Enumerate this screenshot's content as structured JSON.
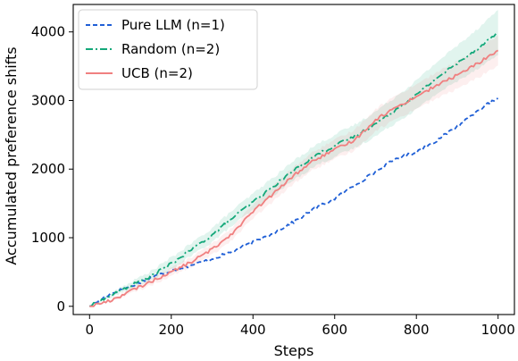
{
  "chart_data": {
    "type": "line",
    "title": "",
    "xlabel": "Steps",
    "ylabel": "Accumulated preference shifts",
    "xlim": [
      -40,
      1040
    ],
    "ylim": [
      -120,
      4400
    ],
    "xticks": [
      0,
      200,
      400,
      600,
      800,
      1000
    ],
    "yticks": [
      0,
      1000,
      2000,
      3000,
      4000
    ],
    "grid": false,
    "legend_position": "top-left",
    "series": [
      {
        "name": "Pure LLM (n=1)",
        "color": "#1f5fd6",
        "dash": "dashed",
        "band": false,
        "x": [
          0,
          50,
          100,
          150,
          200,
          250,
          300,
          350,
          400,
          450,
          500,
          550,
          600,
          650,
          700,
          750,
          800,
          850,
          900,
          950,
          1000
        ],
        "values": [
          0,
          180,
          290,
          420,
          520,
          600,
          690,
          800,
          930,
          1070,
          1230,
          1420,
          1570,
          1770,
          1960,
          2150,
          2250,
          2420,
          2620,
          2860,
          3030
        ]
      },
      {
        "name": "Random (n=2)",
        "color": "#14a87a",
        "dash": "dashdot",
        "band": true,
        "x": [
          0,
          50,
          100,
          150,
          200,
          250,
          300,
          350,
          400,
          450,
          500,
          550,
          600,
          650,
          700,
          750,
          800,
          850,
          900,
          950,
          1000
        ],
        "values": [
          0,
          150,
          300,
          440,
          620,
          830,
          1040,
          1290,
          1520,
          1750,
          1980,
          2190,
          2340,
          2480,
          2660,
          2870,
          3080,
          3330,
          3540,
          3760,
          3990
        ],
        "band_halfwidth": [
          0,
          30,
          50,
          70,
          90,
          90,
          100,
          110,
          120,
          130,
          140,
          150,
          160,
          170,
          180,
          190,
          210,
          230,
          260,
          290,
          330
        ]
      },
      {
        "name": "UCB (n=2)",
        "color": "#f08080",
        "dash": "solid",
        "band": true,
        "x": [
          0,
          50,
          100,
          150,
          200,
          250,
          300,
          350,
          400,
          450,
          500,
          550,
          600,
          650,
          700,
          750,
          800,
          850,
          900,
          950,
          1000
        ],
        "values": [
          0,
          80,
          220,
          360,
          500,
          650,
          830,
          1070,
          1380,
          1640,
          1910,
          2130,
          2280,
          2430,
          2720,
          2900,
          3060,
          3220,
          3370,
          3540,
          3730
        ],
        "band_halfwidth": [
          0,
          20,
          40,
          50,
          60,
          70,
          80,
          90,
          100,
          110,
          120,
          130,
          140,
          150,
          160,
          170,
          180,
          190,
          200,
          210,
          220
        ]
      }
    ]
  }
}
